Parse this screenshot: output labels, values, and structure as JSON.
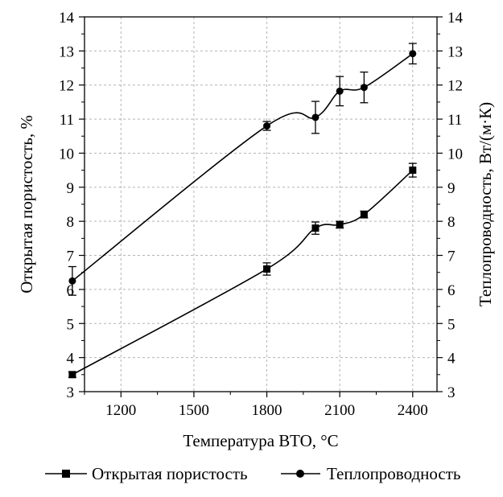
{
  "chart_data": {
    "type": "line",
    "title": "",
    "xlabel": "Температура ВТО, °C",
    "ylabel_left": "Открытая пористость, %",
    "ylabel_right": "Теплопроводность, Вт/(м·К)",
    "xlim": [
      1050,
      2500
    ],
    "ylim": [
      3,
      14
    ],
    "x_ticks": [
      1200,
      1500,
      1800,
      2100,
      2400
    ],
    "y_ticks": [
      3,
      4,
      5,
      6,
      7,
      8,
      9,
      10,
      11,
      12,
      13,
      14
    ],
    "grid": true,
    "legend_position": "bottom",
    "series": [
      {
        "name": "Открытая пористость",
        "marker": "square",
        "axis": "left",
        "x": [
          1000,
          1800,
          2000,
          2100,
          2200,
          2400
        ],
        "y": [
          3.5,
          6.6,
          7.8,
          7.9,
          8.2,
          9.5
        ],
        "err": [
          0.08,
          0.18,
          0.18,
          0.1,
          0.1,
          0.2
        ]
      },
      {
        "name": "Теплопроводность",
        "marker": "circle",
        "axis": "right",
        "x": [
          1000,
          1800,
          2000,
          2100,
          2200,
          2400
        ],
        "y": [
          6.25,
          10.8,
          11.05,
          11.82,
          11.93,
          12.92
        ],
        "err": [
          0.42,
          0.13,
          0.47,
          0.43,
          0.45,
          0.3
        ]
      }
    ]
  }
}
